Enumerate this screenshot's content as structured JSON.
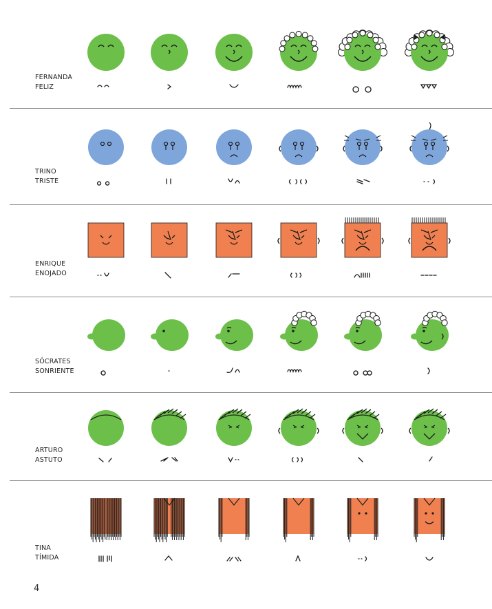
{
  "colors": {
    "green": "#6cc04a",
    "blue": "#7ea6db",
    "orange": "#f08050",
    "ink": "#1a1a1a"
  },
  "rows": [
    {
      "id": "fernanda",
      "first": "FERNANDA",
      "last": "FELIZ",
      "shape": "circle",
      "color": "green"
    },
    {
      "id": "trino",
      "first": "TRINO",
      "last": "TRISTE",
      "shape": "circle",
      "color": "blue"
    },
    {
      "id": "enrique",
      "first": "ENRIQUE",
      "last": "ENOJADO",
      "shape": "square",
      "color": "orange"
    },
    {
      "id": "socrates",
      "first": "SÓCRATES",
      "last": "SONRIENTE",
      "shape": "profile",
      "color": "green"
    },
    {
      "id": "arturo",
      "first": "ARTURO",
      "last": "ASTUTO",
      "shape": "circle",
      "color": "green"
    },
    {
      "id": "tina",
      "first": "TINA",
      "last": "TÍMIDA",
      "shape": "rect",
      "color": "orange"
    }
  ],
  "page_number": "4"
}
